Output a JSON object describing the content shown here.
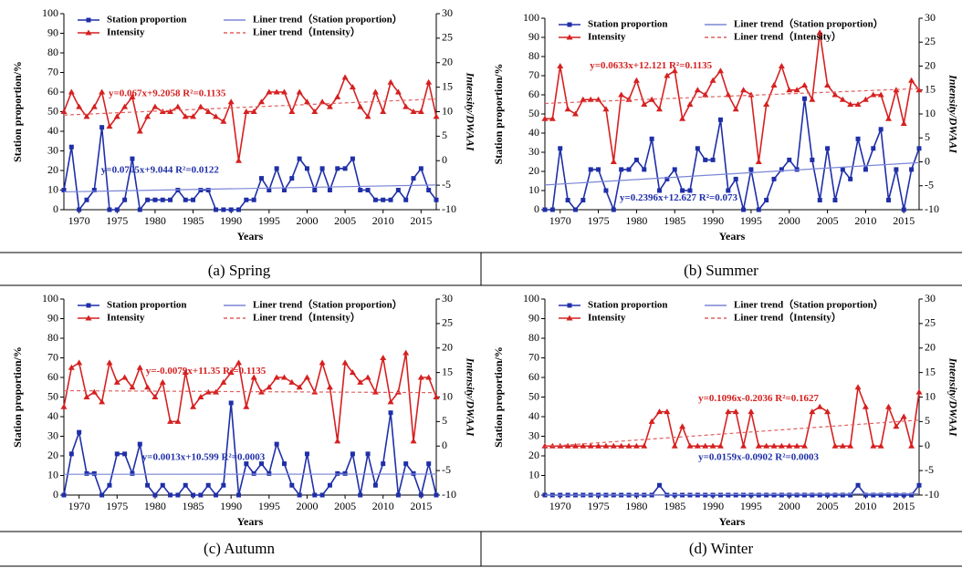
{
  "chart_data": [
    {
      "type": "line",
      "caption": "(a) Spring",
      "ylabel": "Station proportion/%",
      "y2label": "Intensity/DWAAI",
      "xlabel": "Years",
      "x": [
        1968,
        1969,
        1970,
        1971,
        1972,
        1973,
        1974,
        1975,
        1976,
        1977,
        1978,
        1979,
        1980,
        1981,
        1982,
        1983,
        1984,
        1985,
        1986,
        1987,
        1988,
        1989,
        1990,
        1991,
        1992,
        1993,
        1994,
        1995,
        1996,
        1997,
        1998,
        1999,
        2000,
        2001,
        2002,
        2003,
        2004,
        2005,
        2006,
        2007,
        2008,
        2009,
        2010,
        2011,
        2012,
        2013,
        2014,
        2015,
        2016,
        2017
      ],
      "xlim": [
        1968,
        2017
      ],
      "xticks": [
        1970,
        1975,
        1980,
        1985,
        1990,
        1995,
        2000,
        2005,
        2010,
        2015
      ],
      "ylim": [
        0,
        100
      ],
      "yticks": [
        0,
        10,
        20,
        30,
        40,
        50,
        60,
        70,
        80,
        90,
        100
      ],
      "y2lim": [
        -10,
        30
      ],
      "y2ticks": [
        -10,
        -5,
        0,
        5,
        10,
        15,
        20,
        25,
        30
      ],
      "series": [
        {
          "name": "Station proportion",
          "color": "#1f2fa8",
          "marker": "square",
          "values": [
            10,
            32,
            0,
            5,
            10,
            42,
            0,
            0,
            5,
            26,
            0,
            5,
            5,
            5,
            5,
            10,
            5,
            5,
            10,
            10,
            0,
            0,
            0,
            0,
            5,
            5,
            16,
            10,
            21,
            10,
            16,
            26,
            21,
            10,
            21,
            10,
            21,
            21,
            26,
            10,
            10,
            5,
            5,
            5,
            10,
            5,
            16,
            21,
            10,
            5
          ]
        },
        {
          "name": "Intensity",
          "color": "#d62020",
          "marker": "triangle",
          "axis": "y2",
          "values": [
            10,
            14,
            11,
            9,
            11,
            14,
            7,
            9,
            11,
            13,
            6,
            9,
            11,
            10,
            10,
            11,
            9,
            9,
            11,
            10,
            9,
            8,
            12,
            0,
            10,
            10,
            12,
            14,
            14,
            14,
            10,
            14,
            12,
            10,
            12,
            11,
            13,
            17,
            15,
            11,
            9,
            14,
            10,
            16,
            14,
            11,
            10,
            10,
            16,
            9
          ]
        },
        {
          "name": "Liner trend（Station proportion）",
          "color": "#7b86d6",
          "trend": true,
          "x": [
            1968,
            2017
          ],
          "values": [
            9.1,
            12.6
          ]
        },
        {
          "name": "Liner trend（Intensity）",
          "color": "#e06060",
          "trend": true,
          "dashed": true,
          "axis": "y2",
          "x": [
            1968,
            2017
          ],
          "values": [
            9.3,
            12.6
          ]
        }
      ],
      "annotations": [
        {
          "text": "y=0.067x+9.2058  R²=0.1135",
          "color": "#d62020"
        },
        {
          "text": "y=0.0705x+9.044  R²=0.0122",
          "color": "#1f2fa8"
        }
      ]
    },
    {
      "type": "line",
      "caption": "(b) Summer",
      "ylabel": "Station proportion/%",
      "y2label": "Intensity/DWAAI",
      "xlabel": "Years",
      "x": [
        1968,
        1969,
        1970,
        1971,
        1972,
        1973,
        1974,
        1975,
        1976,
        1977,
        1978,
        1979,
        1980,
        1981,
        1982,
        1983,
        1984,
        1985,
        1986,
        1987,
        1988,
        1989,
        1990,
        1991,
        1992,
        1993,
        1994,
        1995,
        1996,
        1997,
        1998,
        1999,
        2000,
        2001,
        2002,
        2003,
        2004,
        2005,
        2006,
        2007,
        2008,
        2009,
        2010,
        2011,
        2012,
        2013,
        2014,
        2015,
        2016,
        2017
      ],
      "xlim": [
        1968,
        2017
      ],
      "xticks": [
        1970,
        1975,
        1980,
        1985,
        1990,
        1995,
        2000,
        2005,
        2010,
        2015
      ],
      "ylim": [
        0,
        100
      ],
      "yticks": [
        0,
        10,
        20,
        30,
        40,
        50,
        60,
        70,
        80,
        90,
        100
      ],
      "y2lim": [
        -10,
        30
      ],
      "y2ticks": [
        -10,
        -5,
        0,
        5,
        10,
        15,
        20,
        25,
        30
      ],
      "series": [
        {
          "name": "Station proportion",
          "color": "#1f2fa8",
          "marker": "square",
          "values": [
            0,
            0,
            32,
            5,
            0,
            5,
            21,
            21,
            10,
            0,
            21,
            21,
            26,
            21,
            37,
            10,
            16,
            21,
            10,
            10,
            32,
            26,
            26,
            47,
            10,
            16,
            0,
            21,
            0,
            5,
            16,
            21,
            26,
            21,
            58,
            26,
            5,
            32,
            5,
            21,
            16,
            37,
            21,
            32,
            42,
            5,
            21,
            0,
            21,
            32
          ]
        },
        {
          "name": "Intensity",
          "color": "#d62020",
          "marker": "triangle",
          "axis": "y2",
          "values": [
            9,
            9,
            20,
            11,
            10,
            13,
            13,
            13,
            11,
            0,
            14,
            13,
            17,
            12,
            13,
            11,
            18,
            19,
            9,
            12,
            15,
            14,
            17,
            19,
            14,
            11,
            15,
            14,
            0,
            12,
            16,
            20,
            15,
            15,
            16,
            13,
            27,
            16,
            14,
            13,
            12,
            12,
            13,
            14,
            14,
            9,
            15,
            8,
            17,
            15
          ]
        },
        {
          "name": "Liner trend（Station proportion）",
          "color": "#7b86d6",
          "trend": true,
          "x": [
            1968,
            2017
          ],
          "values": [
            12.9,
            24.6
          ]
        },
        {
          "name": "Liner trend（Intensity）",
          "color": "#e06060",
          "trend": true,
          "dashed": true,
          "axis": "y2",
          "x": [
            1968,
            2017
          ],
          "values": [
            12.2,
            15.3
          ]
        }
      ],
      "annotations": [
        {
          "text": "y=0.0633x+12.121  R²=0.1135",
          "color": "#d62020"
        },
        {
          "text": "y=0.2396x+12.627  R²=0.073",
          "color": "#1f2fa8"
        }
      ]
    },
    {
      "type": "line",
      "caption": "(c) Autumn",
      "ylabel": "Station proportion/%",
      "y2label": "Intensity/DWAAI",
      "xlabel": "Years",
      "x": [
        1968,
        1969,
        1970,
        1971,
        1972,
        1973,
        1974,
        1975,
        1976,
        1977,
        1978,
        1979,
        1980,
        1981,
        1982,
        1983,
        1984,
        1985,
        1986,
        1987,
        1988,
        1989,
        1990,
        1991,
        1992,
        1993,
        1994,
        1995,
        1996,
        1997,
        1998,
        1999,
        2000,
        2001,
        2002,
        2003,
        2004,
        2005,
        2006,
        2007,
        2008,
        2009,
        2010,
        2011,
        2012,
        2013,
        2014,
        2015,
        2016,
        2017
      ],
      "xlim": [
        1968,
        2017
      ],
      "xticks": [
        1970,
        1975,
        1980,
        1985,
        1990,
        1995,
        2000,
        2005,
        2010,
        2015
      ],
      "ylim": [
        0,
        100
      ],
      "yticks": [
        0,
        10,
        20,
        30,
        40,
        50,
        60,
        70,
        80,
        90,
        100
      ],
      "y2lim": [
        -10,
        30
      ],
      "y2ticks": [
        -10,
        -5,
        0,
        5,
        10,
        15,
        20,
        25,
        30
      ],
      "series": [
        {
          "name": "Station proportion",
          "color": "#1f2fa8",
          "marker": "square",
          "values": [
            0,
            21,
            32,
            11,
            11,
            0,
            5,
            21,
            21,
            11,
            26,
            5,
            0,
            5,
            0,
            0,
            5,
            0,
            0,
            5,
            0,
            5,
            47,
            0,
            16,
            11,
            16,
            11,
            26,
            16,
            5,
            0,
            21,
            0,
            0,
            5,
            11,
            11,
            21,
            0,
            21,
            5,
            16,
            42,
            0,
            16,
            11,
            0,
            16,
            0
          ]
        },
        {
          "name": "Intensity",
          "color": "#d62020",
          "marker": "triangle",
          "axis": "y2",
          "values": [
            8,
            16,
            17,
            10,
            11,
            9,
            17,
            13,
            14,
            12,
            16,
            12,
            10,
            13,
            5,
            5,
            15,
            8,
            10,
            11,
            11,
            13,
            15,
            17,
            8,
            14,
            11,
            12,
            14,
            14,
            13,
            12,
            14,
            11,
            17,
            12,
            1,
            17,
            15,
            13,
            14,
            11,
            18,
            9,
            11,
            19,
            1,
            14,
            14,
            10
          ]
        },
        {
          "name": "Liner trend（Station proportion）",
          "color": "#7b86d6",
          "trend": true,
          "x": [
            1968,
            2017
          ],
          "values": [
            10.6,
            10.7
          ]
        },
        {
          "name": "Liner trend（Intensity）",
          "color": "#e06060",
          "trend": true,
          "dashed": true,
          "axis": "y2",
          "x": [
            1968,
            2017
          ],
          "values": [
            11.3,
            10.9
          ]
        }
      ],
      "annotations": [
        {
          "text": "y=-0.0079x+11.35  R²=0.1135",
          "color": "#d62020"
        },
        {
          "text": "y=0.0013x+10.599  R²=0.0003",
          "color": "#1f2fa8"
        }
      ]
    },
    {
      "type": "line",
      "caption": "(d) Winter",
      "ylabel": "Station proportion/%",
      "y2label": "Intensity/DWAAI",
      "xlabel": "Years",
      "x": [
        1968,
        1969,
        1970,
        1971,
        1972,
        1973,
        1974,
        1975,
        1976,
        1977,
        1978,
        1979,
        1980,
        1981,
        1982,
        1983,
        1984,
        1985,
        1986,
        1987,
        1988,
        1989,
        1990,
        1991,
        1992,
        1993,
        1994,
        1995,
        1996,
        1997,
        1998,
        1999,
        2000,
        2001,
        2002,
        2003,
        2004,
        2005,
        2006,
        2007,
        2008,
        2009,
        2010,
        2011,
        2012,
        2013,
        2014,
        2015,
        2016,
        2017
      ],
      "xlim": [
        1968,
        2017
      ],
      "xticks": [
        1970,
        1975,
        1980,
        1985,
        1990,
        1995,
        2000,
        2005,
        2010,
        2015
      ],
      "ylim": [
        0,
        100
      ],
      "yticks": [
        0,
        10,
        20,
        30,
        40,
        50,
        60,
        70,
        80,
        90,
        100
      ],
      "y2lim": [
        -10,
        30
      ],
      "y2ticks": [
        -10,
        -5,
        0,
        5,
        10,
        15,
        20,
        25,
        30
      ],
      "series": [
        {
          "name": "Station proportion",
          "color": "#1f2fa8",
          "marker": "square",
          "values": [
            0,
            0,
            0,
            0,
            0,
            0,
            0,
            0,
            0,
            0,
            0,
            0,
            0,
            0,
            0,
            5,
            0,
            0,
            0,
            0,
            0,
            0,
            0,
            0,
            0,
            0,
            0,
            0,
            0,
            0,
            0,
            0,
            0,
            0,
            0,
            0,
            0,
            0,
            0,
            0,
            0,
            5,
            0,
            0,
            0,
            0,
            0,
            0,
            0,
            5
          ]
        },
        {
          "name": "Intensity",
          "color": "#d62020",
          "marker": "triangle",
          "axis": "y2",
          "values": [
            0,
            0,
            0,
            0,
            0,
            0,
            0,
            0,
            0,
            0,
            0,
            0,
            0,
            0,
            5,
            7,
            7,
            0,
            4,
            0,
            0,
            0,
            0,
            0,
            7,
            7,
            0,
            7,
            0,
            0,
            0,
            0,
            0,
            0,
            0,
            7,
            8,
            7,
            0,
            0,
            0,
            12,
            8,
            0,
            0,
            8,
            4,
            6,
            0,
            11
          ]
        },
        {
          "name": "Liner trend（Station proportion）",
          "color": "#7b86d6",
          "trend": true,
          "x": [
            1968,
            2017
          ],
          "values": [
            -0.07,
            0.7
          ]
        },
        {
          "name": "Liner trend（Intensity）",
          "color": "#e06060",
          "trend": true,
          "dashed": true,
          "axis": "y2",
          "x": [
            1968,
            2017
          ],
          "values": [
            -0.1,
            5.3
          ]
        }
      ],
      "annotations": [
        {
          "text": "y=0.1096x-0.2036  R²=0.1627",
          "color": "#d62020"
        },
        {
          "text": "y=0.0159x-0.0902  R²=0.0003",
          "color": "#1f2fa8"
        }
      ]
    }
  ]
}
